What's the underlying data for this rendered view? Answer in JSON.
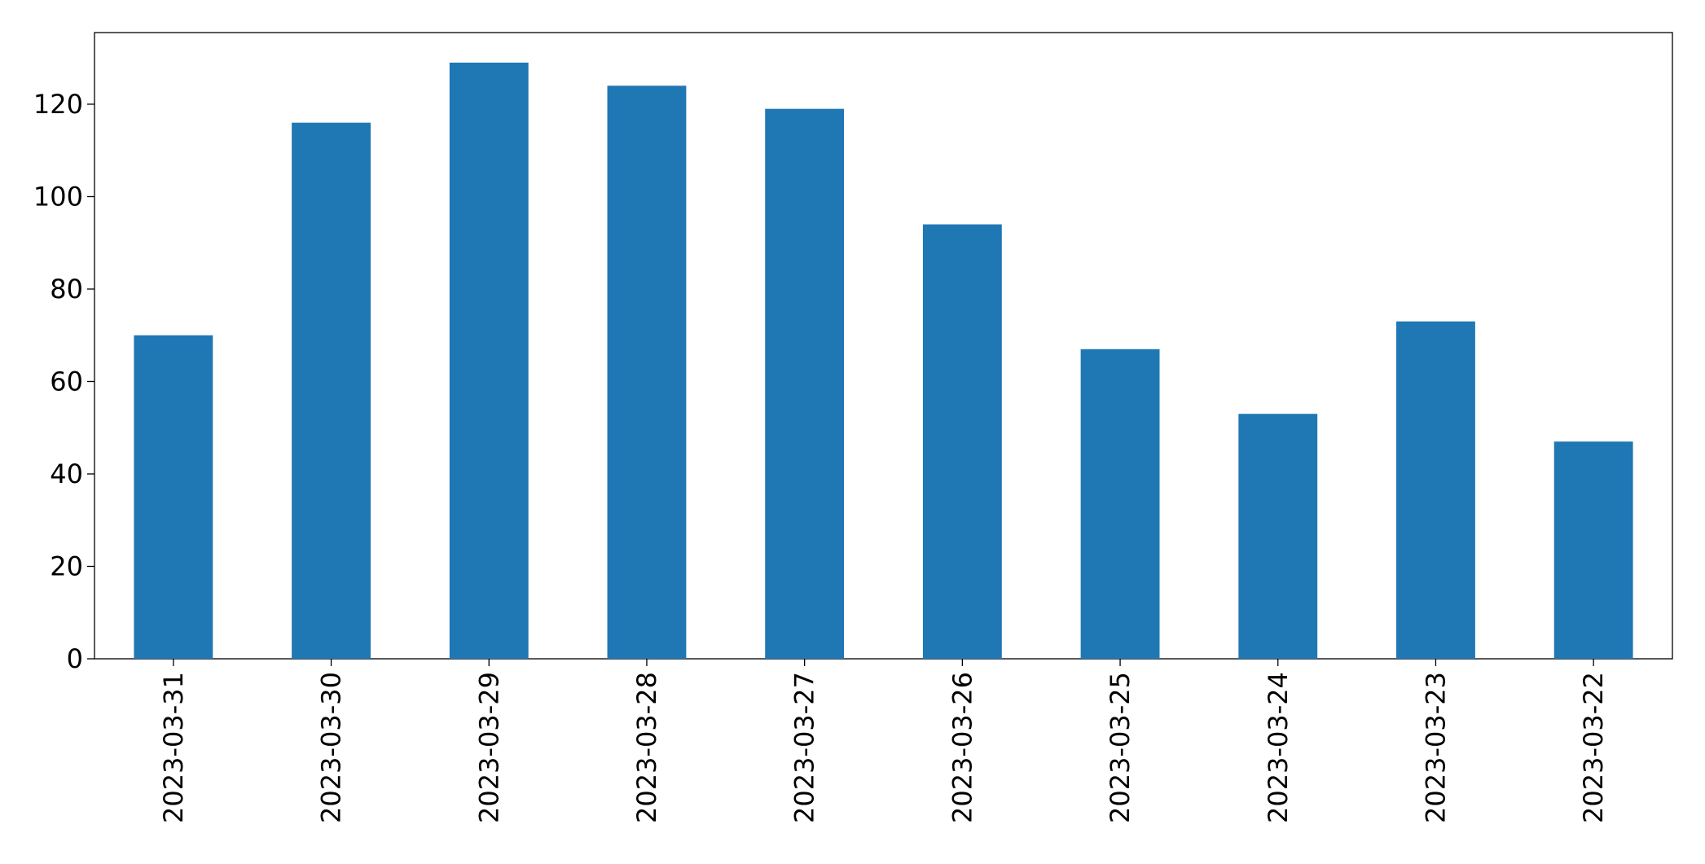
{
  "chart_data": {
    "type": "bar",
    "categories": [
      "2023-03-31",
      "2023-03-30",
      "2023-03-29",
      "2023-03-28",
      "2023-03-27",
      "2023-03-26",
      "2023-03-25",
      "2023-03-24",
      "2023-03-23",
      "2023-03-22"
    ],
    "values": [
      70,
      116,
      129,
      124,
      119,
      94,
      67,
      53,
      73,
      47
    ],
    "color": "#1f77b4",
    "ylim": [
      0,
      135.5
    ],
    "yticks": [
      0,
      20,
      40,
      60,
      80,
      100,
      120
    ],
    "grid": false
  }
}
